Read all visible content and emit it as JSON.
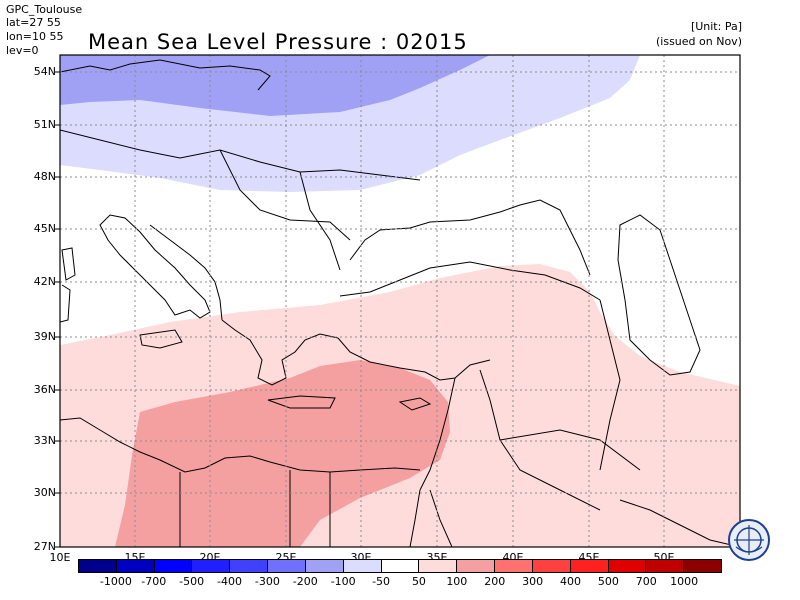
{
  "header": {
    "meta_lines": [
      "GPC_Toulouse",
      "lat=27 55",
      "lon=10 55",
      "lev=0"
    ],
    "title": "Mean Sea Level Pressure : 02015",
    "unit": "[Unit: Pa]",
    "issued": "(issued on Nov)"
  },
  "map": {
    "lat_ticks": [
      "54N",
      "51N",
      "48N",
      "45N",
      "42N",
      "39N",
      "36N",
      "33N",
      "30N",
      "27N"
    ],
    "lon_ticks": [
      "10E",
      "15E",
      "20E",
      "25E",
      "30E",
      "35E",
      "40E",
      "45E",
      "50E"
    ],
    "colors": {
      "coastline": "#000000",
      "grid": "#8c8c8c"
    }
  },
  "colorbar": {
    "labels": [
      "-1000",
      "-700",
      "-500",
      "-400",
      "-300",
      "-200",
      "-100",
      "-50",
      "50",
      "100",
      "200",
      "300",
      "400",
      "500",
      "700",
      "1000"
    ],
    "colors": [
      "#00008c",
      "#0000c0",
      "#0000ff",
      "#2020ff",
      "#4040ff",
      "#7070ff",
      "#a0a0f5",
      "#dcdcff",
      "#ffffff",
      "#ffdcdc",
      "#f5a0a0",
      "#ff7070",
      "#ff4040",
      "#ff2020",
      "#e00000",
      "#c00000",
      "#8c0000"
    ]
  },
  "logo": {
    "icon": "wmo-emblem-icon"
  }
}
